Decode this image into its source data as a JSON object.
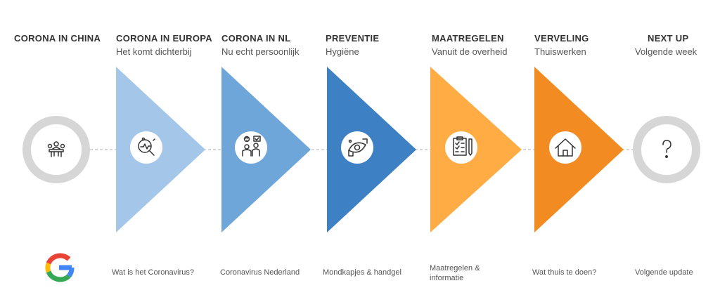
{
  "steps": [
    {
      "title": "CORONA IN CHINA",
      "subtitle": "",
      "link": "",
      "color": "#d6d6d6",
      "shape": "circle",
      "icon": "meeting-icon"
    },
    {
      "title": "CORONA IN EUROPA",
      "subtitle": "Het komt dichterbij",
      "link": "Wat is het Coronavirus?",
      "color": "#a4c6e8",
      "shape": "triangle",
      "icon": "magnifier-virus-icon"
    },
    {
      "title": "CORONA IN NL",
      "subtitle": "Nu echt persoonlijk",
      "link": "Coronavirus Nederland",
      "color": "#6ea6d9",
      "shape": "triangle",
      "icon": "people-question-icon"
    },
    {
      "title": "PREVENTIE",
      "subtitle": "Hygiëne",
      "link": "Mondkapjes & handgel",
      "color": "#3d80c4",
      "shape": "triangle",
      "icon": "handwash-icon"
    },
    {
      "title": "MAATREGELEN",
      "subtitle": "Vanuit de overheid",
      "link": "Maatregelen & informatie",
      "color": "#ffac45",
      "shape": "triangle",
      "icon": "checklist-icon"
    },
    {
      "title": "VERVELING",
      "subtitle": "Thuiswerken",
      "link": "Wat thuis te doen?",
      "color": "#f28b22",
      "shape": "triangle",
      "icon": "home-icon"
    },
    {
      "title": "NEXT UP",
      "subtitle": "Volgende week",
      "link": "Volgende update",
      "color": "#d6d6d6",
      "shape": "circle",
      "icon": "question-icon"
    }
  ],
  "google_logo": "google-g-icon"
}
